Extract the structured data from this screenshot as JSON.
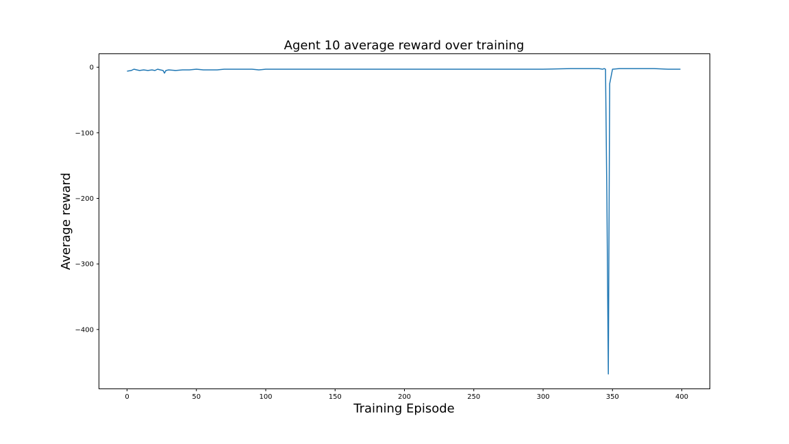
{
  "chart_data": {
    "type": "line",
    "title": "Agent 10 average reward over training",
    "xlabel": "Training Episode",
    "ylabel": "Average reward",
    "xlim": [
      -20,
      420
    ],
    "ylim": [
      -490,
      20
    ],
    "xticks": [
      0,
      50,
      100,
      150,
      200,
      250,
      300,
      350,
      400
    ],
    "xtick_labels": [
      "0",
      "50",
      "100",
      "150",
      "200",
      "250",
      "300",
      "350",
      "400"
    ],
    "yticks": [
      0,
      -100,
      -200,
      -300,
      -400
    ],
    "ytick_labels": [
      "0",
      "−100",
      "−200",
      "−300",
      "−400"
    ],
    "grid": false,
    "legend": "none",
    "series": [
      {
        "color": "#1f77b4",
        "x": [
          0,
          3,
          5,
          7,
          9,
          12,
          15,
          18,
          20,
          22,
          24,
          26,
          27,
          28,
          30,
          35,
          40,
          45,
          50,
          55,
          60,
          65,
          70,
          75,
          80,
          85,
          90,
          95,
          100,
          110,
          120,
          130,
          140,
          150,
          160,
          170,
          180,
          190,
          200,
          220,
          240,
          260,
          280,
          300,
          320,
          330,
          340,
          343,
          344,
          345,
          346,
          347,
          348,
          350,
          355,
          360,
          370,
          380,
          390,
          399
        ],
        "y": [
          -6,
          -5,
          -3,
          -4,
          -5,
          -4,
          -5,
          -4,
          -5,
          -3,
          -4,
          -5,
          -9,
          -5,
          -4,
          -5,
          -4,
          -4,
          -3,
          -4,
          -4,
          -4,
          -3,
          -3,
          -3,
          -3,
          -3,
          -4,
          -3,
          -3,
          -3,
          -3,
          -3,
          -3,
          -3,
          -3,
          -3,
          -3,
          -3,
          -3,
          -3,
          -3,
          -3,
          -3,
          -2,
          -2,
          -2,
          -3,
          -2,
          -3,
          -200,
          -468,
          -25,
          -3,
          -2,
          -2,
          -2,
          -2,
          -3,
          -3
        ]
      }
    ]
  }
}
